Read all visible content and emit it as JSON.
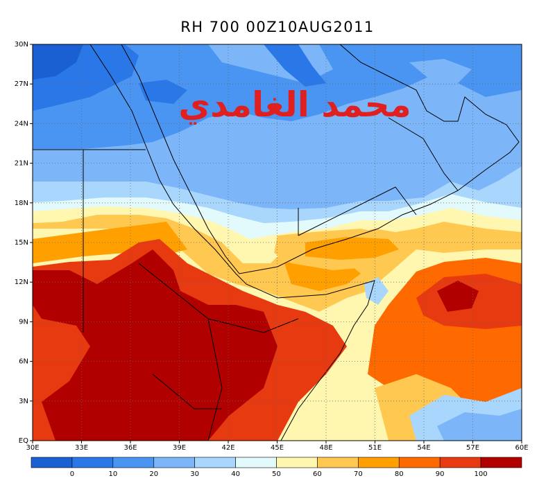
{
  "title": "RH 700 00Z10AUG2011",
  "watermark": "محمد الغامدي",
  "lat_labels": [
    "30N",
    "27N",
    "24N",
    "21N",
    "18N",
    "15N",
    "12N",
    "9N",
    "6N",
    "3N",
    "EQ"
  ],
  "lon_labels": [
    "30E",
    "33E",
    "36E",
    "39E",
    "42E",
    "45E",
    "48E",
    "51E",
    "54E",
    "57E",
    "60E"
  ],
  "colorbar": {
    "labels": [
      "0",
      "10",
      "20",
      "30",
      "40",
      "50",
      "60",
      "70",
      "80",
      "90",
      "100"
    ],
    "colors": [
      "#1a60d2",
      "#2a78e8",
      "#4a94f2",
      "#7cb6f8",
      "#a8d6fc",
      "#e2fafc",
      "#fff6b0",
      "#ffc850",
      "#ffa000",
      "#ff6a00",
      "#e83a10",
      "#b00000"
    ]
  }
}
